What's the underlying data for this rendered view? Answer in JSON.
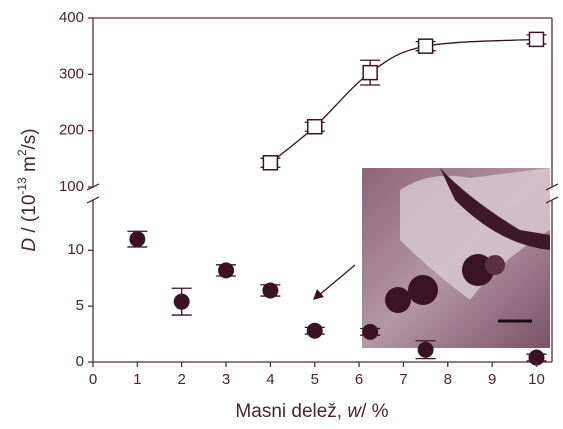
{
  "chart_data": {
    "type": "scatter",
    "x_label_parts": [
      "Masni delež, ",
      "w",
      "/ %"
    ],
    "y_label_parts": [
      "D",
      " / (10",
      "-13",
      " m",
      "2",
      "/s)"
    ],
    "xlim": [
      0,
      10.35
    ],
    "xticks": [
      0,
      1,
      2,
      3,
      4,
      5,
      6,
      7,
      8,
      9,
      10
    ],
    "color": "#3b1224",
    "panels": [
      {
        "ylim": [
          100,
          400
        ],
        "yticks": [
          100,
          200,
          300,
          400
        ],
        "series": [
          {
            "marker": "square",
            "line": true,
            "x": [
              4,
              5,
              6.25,
              7.5,
              10
            ],
            "values": [
              143,
              207,
              303,
              350,
              362
            ],
            "errors": [
              8,
              8,
              22,
              8,
              8
            ]
          }
        ]
      },
      {
        "ylim": [
          0,
          14.5
        ],
        "yticks": [
          0,
          5,
          10
        ],
        "series": [
          {
            "marker": "circle",
            "line": false,
            "x": [
              1,
              2,
              3,
              4,
              5,
              6.25,
              7.5,
              10
            ],
            "values": [
              11,
              5.4,
              8.2,
              6.4,
              2.8,
              2.7,
              1.1,
              0.4
            ],
            "errors": [
              0.7,
              1.2,
              0.5,
              0.5,
              0.3,
              0.3,
              0.8,
              0.3
            ]
          }
        ]
      }
    ]
  }
}
